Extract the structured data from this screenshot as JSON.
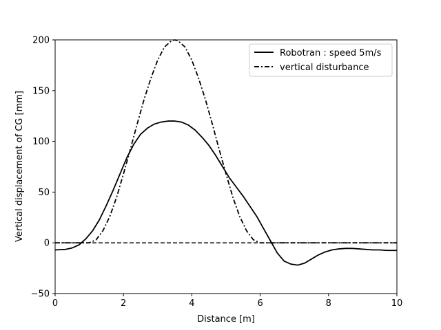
{
  "chart_data": {
    "type": "line",
    "title": "",
    "xlabel": "Distance [m]",
    "ylabel": "Vertical displacement of CG [mm]",
    "xlim": [
      0,
      10
    ],
    "ylim": [
      -50,
      200
    ],
    "xticks": [
      0,
      2,
      4,
      6,
      8,
      10
    ],
    "yticks": [
      -50,
      0,
      50,
      100,
      150,
      200
    ],
    "xtick_labels": [
      "0",
      "2",
      "4",
      "6",
      "8",
      "10"
    ],
    "ytick_labels": [
      "−50",
      "0",
      "50",
      "100",
      "150",
      "200"
    ],
    "grid": false,
    "legend_position": "top-right",
    "reference_line": {
      "y": 0,
      "style": "dashed",
      "color": "#000000"
    },
    "series": [
      {
        "name": "Robotran : speed 5m/s",
        "style": "solid",
        "color": "#000000",
        "x": [
          0,
          0.3,
          0.5,
          0.7,
          0.9,
          1.1,
          1.3,
          1.5,
          1.7,
          1.9,
          2.1,
          2.3,
          2.5,
          2.7,
          2.9,
          3.1,
          3.3,
          3.5,
          3.7,
          3.9,
          4.1,
          4.3,
          4.5,
          4.7,
          4.9,
          5.1,
          5.3,
          5.5,
          5.7,
          5.9,
          6.1,
          6.3,
          6.5,
          6.7,
          6.9,
          7.1,
          7.3,
          7.5,
          7.7,
          7.9,
          8.1,
          8.3,
          8.5,
          8.7,
          8.9,
          9.1,
          9.3,
          9.5,
          9.7,
          10
        ],
        "y": [
          -7,
          -6.5,
          -5,
          -2,
          4,
          12,
          23,
          37,
          52,
          68,
          84,
          97,
          107,
          113,
          117,
          119,
          120,
          120,
          119,
          116,
          111,
          104,
          96,
          86,
          75,
          64,
          55,
          46,
          36,
          26,
          14,
          2,
          -10,
          -18,
          -21,
          -22,
          -20,
          -16,
          -12,
          -9,
          -7,
          -6,
          -5.5,
          -5.5,
          -6,
          -6.5,
          -7,
          -7,
          -7.5,
          -7.5
        ]
      },
      {
        "name": "vertical disturbance",
        "style": "dashdot",
        "color": "#000000",
        "x": [
          0,
          1.0,
          1.2,
          1.4,
          1.6,
          1.8,
          2.0,
          2.2,
          2.4,
          2.6,
          2.8,
          3.0,
          3.2,
          3.4,
          3.5,
          3.6,
          3.8,
          4.0,
          4.2,
          4.4,
          4.6,
          4.8,
          5.0,
          5.2,
          5.4,
          5.6,
          5.8,
          6.0,
          10
        ],
        "y": [
          0,
          0,
          3,
          12,
          26,
          45,
          68,
          92,
          117,
          141,
          162,
          180,
          193,
          199,
          200,
          199,
          193,
          180,
          162,
          141,
          117,
          92,
          68,
          45,
          26,
          12,
          3,
          0,
          0
        ]
      }
    ]
  }
}
